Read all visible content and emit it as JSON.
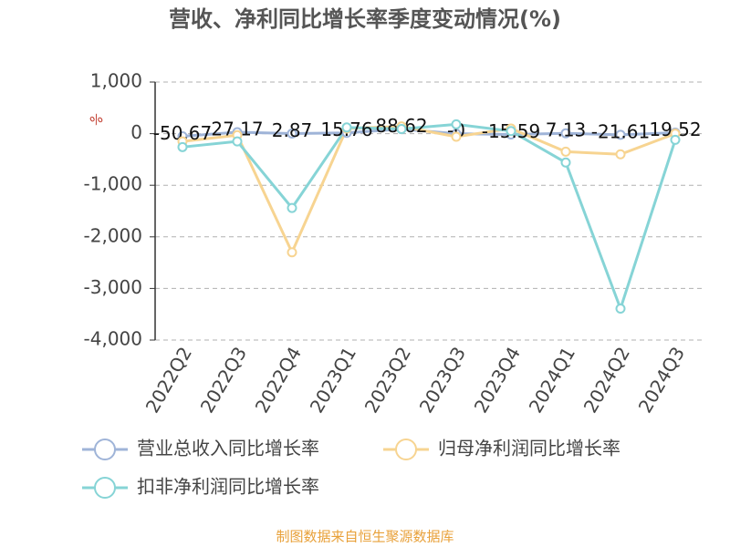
{
  "chart_data": {
    "type": "line",
    "title": "营收、净利同比增长率季度变动情况(%)",
    "y_unit": "%",
    "source": "制图数据来自恒生聚源数据库",
    "categories": [
      "2022Q2",
      "2022Q3",
      "2022Q4",
      "2023Q1",
      "2023Q2",
      "2023Q3",
      "2023Q4",
      "2024Q1",
      "2024Q2",
      "2024Q3"
    ],
    "series": [
      {
        "name": "营业总收入同比增长率",
        "color": "#9fb4d8",
        "values": [
          -50.67,
          27.17,
          2.87,
          15.76,
          88.62,
          -0.3,
          -15.59,
          7.13,
          -21.61,
          19.52
        ],
        "value_labels": [
          "-50.67",
          "27.17",
          "2.87",
          "15.76",
          "88.62",
          "-0",
          "-15.59",
          "7.13",
          "-21.61",
          "19.52"
        ]
      },
      {
        "name": "归母净利润同比增长率",
        "color": "#f7d491",
        "values": [
          -150,
          -30,
          -2300,
          100,
          140,
          -60,
          100,
          -350,
          -400,
          0
        ]
      },
      {
        "name": "扣非净利润同比增长率",
        "color": "#86d4d6",
        "values": [
          -260,
          -150,
          -1440,
          120,
          90,
          180,
          50,
          -560,
          -3390,
          -120
        ]
      }
    ],
    "ylim": [
      -4000,
      1000
    ],
    "yticks": [
      {
        "value": 1000,
        "label": "1,000"
      },
      0,
      {
        "value": -1000,
        "label": "-1,000"
      },
      {
        "value": -2000,
        "label": "-2,000"
      },
      {
        "value": -3000,
        "label": "-3,000"
      },
      {
        "value": -4000,
        "label": "-4,000"
      }
    ],
    "grid": true
  }
}
